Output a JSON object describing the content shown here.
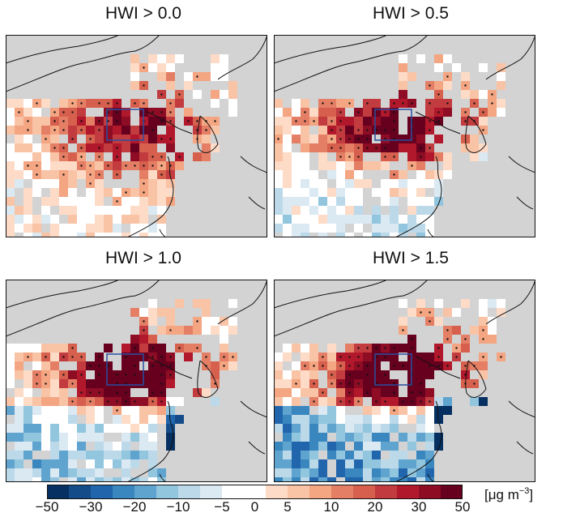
{
  "panels": [
    {
      "title": "HWI > 0.0",
      "icon": "map-panel-hwi-0-0"
    },
    {
      "title": "HWI > 0.5",
      "icon": "map-panel-hwi-0-5"
    },
    {
      "title": "HWI > 1.0",
      "icon": "map-panel-hwi-1-0"
    },
    {
      "title": "HWI > 1.5",
      "icon": "map-panel-hwi-1-5"
    }
  ],
  "colorbar": {
    "ticks": [
      "−50",
      "−30",
      "−20",
      "−10",
      "−5",
      "0",
      "5",
      "10",
      "20",
      "30",
      "50"
    ],
    "unit_main": "[μg m",
    "unit_exp": "−3",
    "unit_close": "]",
    "colors": [
      "#053061",
      "#144c8a",
      "#2166ac",
      "#3a87c0",
      "#5fa3cf",
      "#92c5de",
      "#bcd9ea",
      "#dbe9f3",
      "#ffffff",
      "#ffffff",
      "#fddbc7",
      "#f9c3a6",
      "#f4a582",
      "#e47f66",
      "#d6604d",
      "#c13b3f",
      "#b2182b",
      "#8e0d25",
      "#67001f"
    ]
  },
  "colors": {
    "land": "#d3d3d3",
    "box": "#2a4fa0",
    "outline": "#111111"
  }
}
